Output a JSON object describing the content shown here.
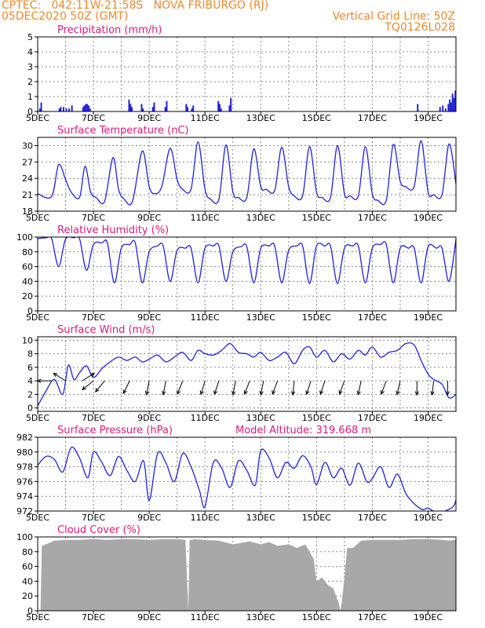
{
  "header": {
    "line1_left": "CPTEC:   042:11W-21:58S   NOVA FRIBURGO (RJ)",
    "line2_left": "05DEC2020 50Z (GMT)",
    "line1_right": "Vertical Grid Line: 50Z",
    "line2_right": "TQ0126L028",
    "annotation": "Model Altitude: 319.668 m"
  },
  "colors": {
    "header": "#e88a2e",
    "title": "#e0197d",
    "series": "#2222dd",
    "cloud": "#a8a8a8",
    "grid": "#888888"
  },
  "x_axis": {
    "tick_labels": [
      "5DEC",
      "7DEC",
      "9DEC",
      "11DEC",
      "13DEC",
      "15DEC",
      "17DEC",
      "19DEC"
    ],
    "start_day": 5,
    "end_day": 20
  },
  "chart_data": [
    {
      "type": "bar",
      "title": "Precipitation (mm/h)",
      "ylim": [
        0,
        5
      ],
      "yticks": [
        "0",
        "1",
        "2",
        "3",
        "4",
        "5"
      ],
      "x": [
        5.05,
        5.1,
        5.75,
        5.8,
        5.9,
        6.0,
        6.1,
        6.2,
        6.6,
        6.65,
        6.7,
        6.75,
        6.8,
        6.85,
        8.25,
        8.3,
        8.35,
        8.7,
        8.75,
        9.1,
        9.15,
        9.55,
        9.6,
        10.3,
        10.35,
        10.5,
        10.55,
        11.45,
        11.5,
        11.55,
        11.85,
        11.9,
        18.6,
        19.4,
        19.5,
        19.6,
        19.7,
        19.75,
        19.8,
        19.85,
        19.9,
        19.95
      ],
      "values": [
        0.2,
        0.6,
        0.2,
        0.3,
        0.3,
        0.2,
        0.2,
        0.4,
        0.3,
        0.4,
        0.5,
        0.5,
        0.4,
        0.2,
        0.8,
        0.5,
        0.3,
        0.5,
        0.2,
        0.3,
        0.6,
        0.3,
        0.7,
        0.5,
        0.3,
        0.2,
        0.4,
        0.7,
        0.5,
        0.2,
        0.4,
        0.9,
        0.5,
        0.3,
        0.4,
        0.2,
        0.5,
        0.8,
        0.6,
        1.2,
        0.9,
        1.4
      ]
    },
    {
      "type": "line",
      "title": "Surface Temperature (nC)",
      "ylim": [
        18,
        31.5
      ],
      "yticks": [
        "18",
        "21",
        "24",
        "27",
        "30"
      ],
      "ytick_values": [
        18,
        21,
        24,
        27,
        30
      ],
      "x": [
        5.0,
        5.5,
        5.75,
        6.0,
        6.2,
        6.5,
        6.7,
        6.9,
        7.1,
        7.4,
        7.7,
        7.9,
        8.1,
        8.4,
        8.75,
        9.0,
        9.2,
        9.45,
        9.75,
        10.0,
        10.2,
        10.5,
        10.75,
        11.0,
        11.2,
        11.5,
        11.75,
        12.0,
        12.2,
        12.5,
        12.75,
        13.0,
        13.2,
        13.5,
        13.75,
        14.0,
        14.2,
        14.5,
        14.75,
        15.0,
        15.2,
        15.5,
        15.75,
        16.0,
        16.2,
        16.5,
        16.75,
        17.0,
        17.2,
        17.5,
        17.75,
        18.0,
        18.2,
        18.5,
        18.75,
        19.0,
        19.2,
        19.5,
        19.75,
        20.0
      ],
      "values": [
        21.2,
        20.7,
        26.5,
        23.8,
        21.5,
        20.5,
        26.2,
        21.5,
        20.5,
        19.8,
        27.8,
        22.0,
        20.2,
        19.8,
        29.0,
        22.5,
        21.2,
        22.5,
        29.5,
        23.8,
        22.0,
        22.0,
        30.7,
        22.0,
        20.2,
        20.2,
        30.1,
        21.5,
        20.5,
        20.5,
        29.4,
        22.5,
        22.0,
        21.8,
        29.7,
        22.5,
        20.8,
        20.8,
        29.8,
        21.5,
        20.5,
        20.5,
        30.0,
        21.2,
        20.8,
        20.8,
        29.8,
        21.2,
        20.0,
        20.0,
        30.2,
        23.5,
        22.5,
        22.5,
        30.9,
        21.5,
        21.0,
        21.0,
        30.3,
        23.0
      ]
    },
    {
      "type": "line",
      "title": "Relative Humidity (%)",
      "ylim": [
        0,
        100
      ],
      "yticks": [
        "0",
        "20",
        "40",
        "60",
        "80",
        "100"
      ],
      "ytick_values": [
        0,
        20,
        40,
        60,
        80,
        100
      ],
      "x": [
        5.0,
        5.3,
        5.5,
        5.75,
        6.0,
        6.3,
        6.5,
        6.75,
        7.0,
        7.3,
        7.5,
        7.75,
        8.0,
        8.3,
        8.5,
        8.75,
        9.0,
        9.3,
        9.5,
        9.75,
        10.0,
        10.3,
        10.5,
        10.75,
        11.0,
        11.3,
        11.5,
        11.75,
        12.0,
        12.3,
        12.5,
        12.75,
        13.0,
        13.3,
        13.5,
        13.75,
        14.0,
        14.3,
        14.5,
        14.75,
        15.0,
        15.3,
        15.5,
        15.75,
        16.0,
        16.3,
        16.5,
        16.75,
        17.0,
        17.3,
        17.5,
        17.75,
        18.0,
        18.3,
        18.5,
        18.75,
        19.0,
        19.3,
        19.5,
        19.75,
        20.0
      ],
      "values": [
        98,
        99,
        98,
        60,
        97,
        99,
        98,
        55,
        90,
        92,
        92,
        38,
        85,
        90,
        92,
        38,
        80,
        88,
        88,
        40,
        82,
        85,
        85,
        38,
        85,
        88,
        88,
        40,
        80,
        87,
        87,
        38,
        85,
        88,
        88,
        38,
        82,
        88,
        88,
        37,
        88,
        88,
        88,
        37,
        85,
        88,
        88,
        38,
        85,
        90,
        90,
        38,
        85,
        85,
        85,
        38,
        87,
        85,
        85,
        40,
        97
      ]
    },
    {
      "type": "line",
      "title": "Surface Wind (m/s)",
      "ylim": [
        -0.5,
        10.5
      ],
      "yticks": [
        "0",
        "2",
        "4",
        "6",
        "8",
        "10"
      ],
      "ytick_values": [
        0,
        2,
        4,
        6,
        8,
        10
      ],
      "x": [
        5.0,
        5.3,
        5.6,
        5.9,
        6.1,
        6.3,
        6.5,
        6.75,
        7.0,
        7.3,
        7.6,
        7.9,
        8.2,
        8.5,
        8.75,
        9.0,
        9.3,
        9.6,
        9.9,
        10.2,
        10.5,
        10.75,
        11.0,
        11.3,
        11.6,
        11.9,
        12.2,
        12.5,
        12.75,
        13.0,
        13.3,
        13.6,
        13.9,
        14.2,
        14.5,
        14.75,
        15.0,
        15.3,
        15.6,
        15.9,
        16.2,
        16.5,
        16.75,
        17.0,
        17.3,
        17.6,
        17.9,
        18.2,
        18.5,
        18.75,
        19.0,
        19.2,
        19.5,
        19.75,
        20.0
      ],
      "values": [
        0.3,
        2.5,
        4.2,
        2.0,
        6.3,
        4.2,
        5.2,
        6.2,
        4.5,
        5.8,
        6.8,
        7.5,
        7.0,
        7.5,
        6.8,
        7.2,
        7.8,
        6.8,
        7.5,
        8.2,
        7.0,
        8.5,
        8.0,
        7.8,
        8.5,
        9.5,
        8.2,
        8.0,
        7.5,
        8.2,
        7.0,
        7.5,
        8.2,
        6.5,
        8.5,
        9.0,
        7.5,
        8.5,
        6.8,
        8.0,
        7.2,
        8.5,
        7.8,
        9.0,
        7.5,
        8.2,
        8.5,
        9.5,
        9.3,
        7.0,
        5.0,
        4.2,
        3.5,
        1.5,
        2.0
      ],
      "vector_x": [
        5.5,
        6.0,
        6.6,
        7.0,
        7.4,
        8.3,
        9.0,
        9.6,
        10.2,
        11.0,
        11.5,
        12.1,
        12.6,
        13.1,
        13.6,
        14.2,
        14.8,
        15.3,
        16.0,
        16.6,
        17.5,
        18.0,
        18.6,
        19.2,
        19.7
      ],
      "vector_u": [
        -1.0,
        -0.8,
        0.8,
        -1.0,
        -0.5,
        -0.5,
        -0.2,
        -0.2,
        -0.4,
        -0.3,
        -0.4,
        -0.2,
        -0.3,
        -0.2,
        -0.3,
        -0.1,
        -0.3,
        -0.3,
        -0.3,
        -0.2,
        -0.3,
        -0.2,
        0.0,
        -0.1,
        0.0
      ],
      "vector_v": [
        0.0,
        0.5,
        0.5,
        -0.8,
        -0.6,
        -1.0,
        -1.0,
        -1.0,
        -1.0,
        -1.0,
        -1.2,
        -1.0,
        -0.8,
        -1.0,
        -0.8,
        -1.0,
        -0.9,
        -0.9,
        -0.8,
        -0.9,
        -0.8,
        -0.9,
        -1.2,
        -0.9,
        -1.0
      ]
    },
    {
      "type": "line",
      "title": "Surface Pressure (hPa)",
      "ylim": [
        972,
        982
      ],
      "yticks": [
        "972",
        "974",
        "976",
        "978",
        "980",
        "982"
      ],
      "ytick_values": [
        972,
        974,
        976,
        978,
        980,
        982
      ],
      "x": [
        5.0,
        5.3,
        5.6,
        5.9,
        6.2,
        6.5,
        6.8,
        7.0,
        7.3,
        7.6,
        7.9,
        8.2,
        8.5,
        8.8,
        9.0,
        9.3,
        9.6,
        9.9,
        10.2,
        10.5,
        10.8,
        11.0,
        11.3,
        11.6,
        11.9,
        12.2,
        12.5,
        12.8,
        13.0,
        13.3,
        13.6,
        13.9,
        14.2,
        14.5,
        14.8,
        15.0,
        15.3,
        15.6,
        15.9,
        16.2,
        16.5,
        16.8,
        17.0,
        17.3,
        17.6,
        17.9,
        18.2,
        18.5,
        18.8,
        19.0,
        19.3,
        19.6,
        19.9,
        20.0
      ],
      "values": [
        978.2,
        979.4,
        979.0,
        977.3,
        980.6,
        979.2,
        976.5,
        980.0,
        978.6,
        976.8,
        979.4,
        977.5,
        976.0,
        978.8,
        973.4,
        979.8,
        978.5,
        976.0,
        979.8,
        978.0,
        974.8,
        972.6,
        978.6,
        977.8,
        975.2,
        978.8,
        977.5,
        975.5,
        980.2,
        979.2,
        976.5,
        978.6,
        977.8,
        979.5,
        978.0,
        975.6,
        978.6,
        976.5,
        977.8,
        975.5,
        978.5,
        976.0,
        976.4,
        978.0,
        975.2,
        977.0,
        974.4,
        973.0,
        972.2,
        972.4,
        971.8,
        972.0,
        972.6,
        973.5
      ]
    },
    {
      "type": "area",
      "title": "Cloud Cover (%)",
      "ylim": [
        0,
        100
      ],
      "yticks": [
        "0",
        "20",
        "40",
        "60",
        "80",
        "100"
      ],
      "ytick_values": [
        0,
        20,
        40,
        60,
        80,
        100
      ],
      "x": [
        5.0,
        5.1,
        5.15,
        5.3,
        5.6,
        6.0,
        6.5,
        7.0,
        7.5,
        8.0,
        8.5,
        9.0,
        9.5,
        10.0,
        10.3,
        10.4,
        10.45,
        10.55,
        10.6,
        11.0,
        11.5,
        12.0,
        12.3,
        12.6,
        13.0,
        13.3,
        13.6,
        14.0,
        14.3,
        14.6,
        14.9,
        15.0,
        15.2,
        15.4,
        15.6,
        15.8,
        15.85,
        15.9,
        16.0,
        16.1,
        16.3,
        16.6,
        17.0,
        17.5,
        18.0,
        18.5,
        19.0,
        19.5,
        19.8,
        19.9,
        20.0
      ],
      "values": [
        0,
        0,
        88,
        90,
        95,
        96,
        96,
        97,
        96,
        97,
        97,
        96,
        97,
        97,
        96,
        0,
        96,
        96,
        97,
        96,
        95,
        90,
        92,
        94,
        90,
        93,
        88,
        90,
        85,
        90,
        70,
        40,
        45,
        35,
        30,
        10,
        0,
        10,
        45,
        85,
        85,
        95,
        96,
        96,
        96,
        97,
        97,
        96,
        95,
        96,
        96
      ]
    }
  ]
}
